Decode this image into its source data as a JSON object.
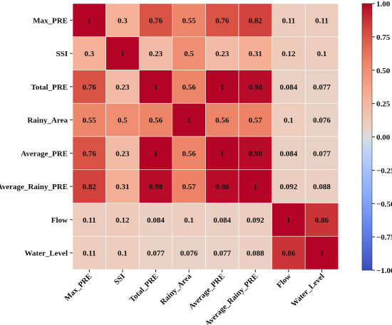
{
  "chart_data": {
    "type": "heatmap",
    "title": "",
    "xlabel": "",
    "ylabel": "",
    "rows": [
      "Max_PRE",
      "SSI",
      "Total_PRE",
      "Rainy_Area",
      "Average_PRE",
      "Average_Rainy_PRE",
      "Flow",
      "Water_Level"
    ],
    "columns": [
      "Max_PRE",
      "SSI",
      "Total_PRE",
      "Rainy_Area",
      "Average_PRE",
      "Average_Rainy_PRE",
      "Flow",
      "Water_Level"
    ],
    "values": [
      [
        1,
        0.3,
        0.76,
        0.55,
        0.76,
        0.82,
        0.11,
        0.11
      ],
      [
        0.3,
        1,
        0.23,
        0.5,
        0.23,
        0.31,
        0.12,
        0.1
      ],
      [
        0.76,
        0.23,
        1,
        0.56,
        1,
        0.98,
        0.084,
        0.077
      ],
      [
        0.55,
        0.5,
        0.56,
        1,
        0.56,
        0.57,
        0.1,
        0.076
      ],
      [
        0.76,
        0.23,
        1,
        0.56,
        1,
        0.98,
        0.084,
        0.077
      ],
      [
        0.82,
        0.31,
        0.98,
        0.57,
        0.98,
        1,
        0.092,
        0.088
      ],
      [
        0.11,
        0.12,
        0.084,
        0.1,
        0.084,
        0.092,
        1,
        0.86
      ],
      [
        0.11,
        0.1,
        0.077,
        0.076,
        0.077,
        0.088,
        0.86,
        1
      ]
    ],
    "annotations": [
      [
        "1",
        "0.3",
        "0.76",
        "0.55",
        "0.76",
        "0.82",
        "0.11",
        "0.11"
      ],
      [
        "0.3",
        "1",
        "0.23",
        "0.5",
        "0.23",
        "0.31",
        "0.12",
        "0.1"
      ],
      [
        "0.76",
        "0.23",
        "1",
        "0.56",
        "1",
        "0.98",
        "0.084",
        "0.077"
      ],
      [
        "0.55",
        "0.5",
        "0.56",
        "1",
        "0.56",
        "0.57",
        "0.1",
        "0.076"
      ],
      [
        "0.76",
        "0.23",
        "1",
        "0.56",
        "1",
        "0.98",
        "0.084",
        "0.077"
      ],
      [
        "0.82",
        "0.31",
        "0.98",
        "0.57",
        "0.98",
        "1",
        "0.092",
        "0.088"
      ],
      [
        "0.11",
        "0.12",
        "0.084",
        "0.1",
        "0.084",
        "0.092",
        "1",
        "0.86"
      ],
      [
        "0.11",
        "0.1",
        "0.077",
        "0.076",
        "0.077",
        "0.088",
        "0.86",
        "1"
      ]
    ],
    "colormap": "coolwarm",
    "vmin": -1,
    "vmax": 1,
    "colorbar": {
      "ticks": [
        1,
        0.75,
        0.5,
        0.25,
        0,
        -0.25,
        -0.5,
        -0.75,
        -1
      ],
      "tick_labels": [
        "1.00",
        "0.75",
        "0.50",
        "0.25",
        "0.00",
        "−0.25",
        "−0.50",
        "−0.75",
        "−1.00"
      ],
      "placement": "right"
    },
    "grid": true,
    "xtick_rotation_deg": 45
  }
}
